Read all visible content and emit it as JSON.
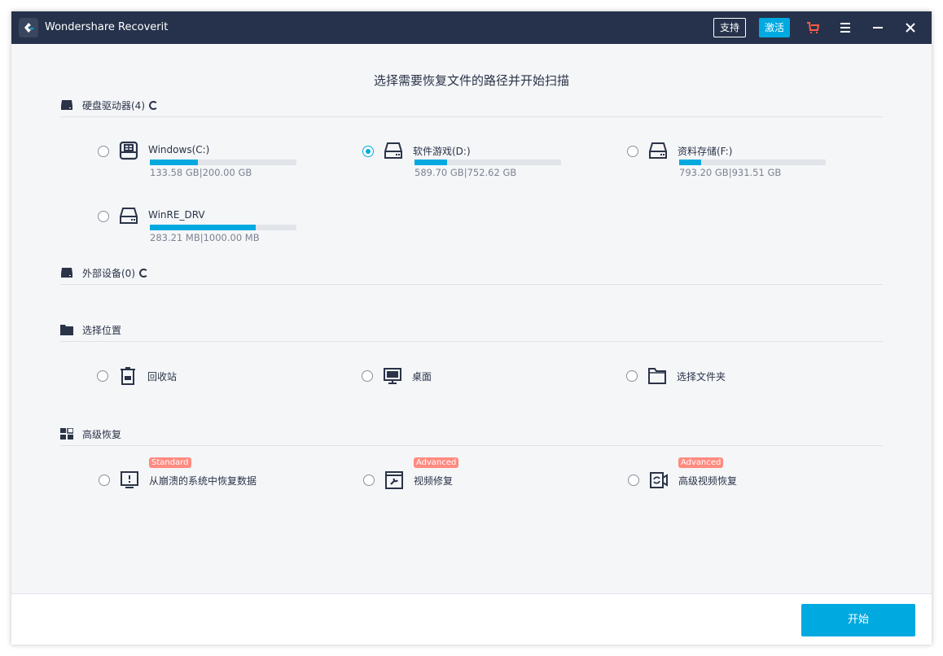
{
  "titlebar": {
    "app_title": "Wondershare Recoverit",
    "support_label": "支持",
    "activate_label": "激活",
    "icons": [
      "cart-icon",
      "menu-icon",
      "minimize-icon",
      "close-icon"
    ],
    "cart_color": "#ff5c45"
  },
  "heading": "选择需要恢复文件的路径并开始扫描",
  "sections": {
    "drives": {
      "label": "硬盘驱动器(4)",
      "items": [
        {
          "name": "Windows(C:)",
          "size": "133.58 GB|200.00 GB",
          "fill_percent": 33,
          "selected": false,
          "icon": "windows-drive-icon"
        },
        {
          "name": "软件游戏(D:)",
          "size": "589.70 GB|752.62 GB",
          "fill_percent": 22,
          "selected": true,
          "icon": "hard-drive-icon"
        },
        {
          "name": "资料存储(F:)",
          "size": "793.20 GB|931.51 GB",
          "fill_percent": 15,
          "selected": false,
          "icon": "hard-drive-icon"
        },
        {
          "name": "WinRE_DRV",
          "size": "283.21 MB|1000.00 MB",
          "fill_percent": 72,
          "selected": false,
          "icon": "hard-drive-icon"
        }
      ]
    },
    "external": {
      "label": "外部设备(0)"
    },
    "location": {
      "label": "选择位置",
      "items": [
        {
          "name": "回收站",
          "icon": "recycle-bin-icon"
        },
        {
          "name": "桌面",
          "icon": "desktop-icon"
        },
        {
          "name": "选择文件夹",
          "icon": "folder-icon"
        }
      ]
    },
    "advanced": {
      "label": "高级恢复",
      "items": [
        {
          "name": "从崩溃的系统中恢复数据",
          "badge": "Standard",
          "icon": "crashed-system-icon"
        },
        {
          "name": "视频修复",
          "badge": "Advanced",
          "icon": "video-repair-icon"
        },
        {
          "name": "高级视频恢复",
          "badge": "Advanced",
          "icon": "advanced-video-icon"
        }
      ]
    }
  },
  "footer": {
    "start_label": "开始"
  },
  "colors": {
    "accent": "#00a9e0",
    "titlebar": "#26324b",
    "badge": "#ff8a80"
  }
}
